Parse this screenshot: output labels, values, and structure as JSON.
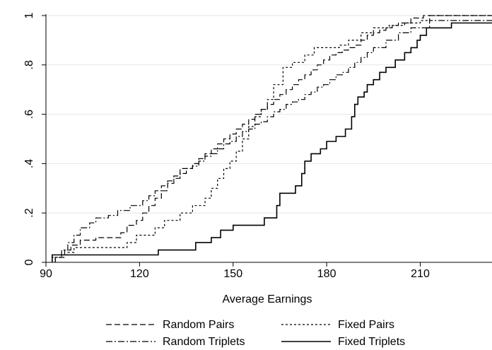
{
  "chart_data": {
    "type": "line",
    "step": true,
    "xlabel": "Average Earnings",
    "ylabel": "",
    "xlim": [
      90,
      233
    ],
    "ylim": [
      0,
      1
    ],
    "x_ticks": [
      90,
      120,
      150,
      180,
      210
    ],
    "y_ticks": [
      0,
      0.2,
      0.4,
      0.6,
      0.8,
      1
    ],
    "x_tick_labels": [
      "90",
      "120",
      "150",
      "180",
      "210"
    ],
    "y_tick_labels": [
      "0",
      ".2",
      ".4",
      ".6",
      ".8",
      "1"
    ],
    "grid": "horizontal",
    "legend_position": "bottom",
    "series": [
      {
        "name": "Random Pairs",
        "dash": "dashed",
        "x": [
          93,
          96,
          98,
          101,
          106,
          114,
          116,
          119,
          121,
          123,
          125,
          127,
          129,
          131,
          133,
          137,
          139,
          141,
          143,
          145,
          147,
          149,
          151,
          153,
          155,
          157,
          159,
          161,
          163,
          165,
          167,
          169,
          171,
          173,
          175,
          177,
          179,
          181,
          183,
          185,
          187,
          189,
          191,
          193,
          195,
          197,
          199,
          201,
          203,
          207,
          211
        ],
        "y": [
          0.02,
          0.05,
          0.07,
          0.09,
          0.1,
          0.12,
          0.15,
          0.17,
          0.2,
          0.23,
          0.26,
          0.29,
          0.32,
          0.35,
          0.38,
          0.4,
          0.42,
          0.44,
          0.46,
          0.48,
          0.5,
          0.52,
          0.54,
          0.56,
          0.58,
          0.6,
          0.62,
          0.64,
          0.66,
          0.68,
          0.7,
          0.72,
          0.74,
          0.76,
          0.78,
          0.8,
          0.82,
          0.84,
          0.85,
          0.86,
          0.87,
          0.88,
          0.9,
          0.92,
          0.93,
          0.94,
          0.95,
          0.96,
          0.97,
          0.99,
          1.0
        ]
      },
      {
        "name": "Fixed Pairs",
        "dash": "dotted",
        "x": [
          92,
          95,
          97,
          99,
          116,
          119,
          125,
          128,
          133,
          137,
          141,
          143,
          145,
          147,
          149,
          151,
          153,
          155,
          157,
          159,
          161,
          163,
          166,
          169,
          173,
          176,
          180,
          184,
          187,
          191,
          195,
          200,
          205,
          210,
          213
        ],
        "y": [
          0.02,
          0.03,
          0.04,
          0.06,
          0.08,
          0.11,
          0.14,
          0.17,
          0.2,
          0.23,
          0.26,
          0.3,
          0.34,
          0.38,
          0.41,
          0.45,
          0.5,
          0.55,
          0.59,
          0.62,
          0.66,
          0.72,
          0.79,
          0.81,
          0.84,
          0.87,
          0.87,
          0.88,
          0.9,
          0.93,
          0.95,
          0.96,
          0.97,
          0.98,
          1.0
        ]
      },
      {
        "name": "Random Triplets",
        "dash": "dashdot",
        "x": [
          93,
          95,
          97,
          99,
          101,
          104,
          106,
          110,
          113,
          117,
          121,
          123,
          125,
          127,
          129,
          131,
          133,
          135,
          137,
          139,
          141,
          143,
          145,
          147,
          149,
          151,
          153,
          155,
          157,
          159,
          161,
          163,
          165,
          167,
          169,
          171,
          173,
          175,
          177,
          179,
          181,
          183,
          185,
          187,
          189,
          191,
          193,
          195,
          199,
          203,
          207,
          213
        ],
        "y": [
          0.02,
          0.05,
          0.08,
          0.11,
          0.14,
          0.16,
          0.18,
          0.19,
          0.21,
          0.23,
          0.25,
          0.27,
          0.29,
          0.31,
          0.33,
          0.34,
          0.36,
          0.38,
          0.39,
          0.41,
          0.43,
          0.44,
          0.46,
          0.48,
          0.49,
          0.51,
          0.53,
          0.54,
          0.56,
          0.57,
          0.59,
          0.61,
          0.62,
          0.64,
          0.65,
          0.66,
          0.68,
          0.69,
          0.71,
          0.72,
          0.74,
          0.76,
          0.77,
          0.79,
          0.81,
          0.83,
          0.85,
          0.87,
          0.9,
          0.93,
          0.95,
          0.98
        ]
      },
      {
        "name": "Fixed Triplets",
        "dash": "solid",
        "x": [
          92,
          102,
          126,
          133,
          138,
          143,
          146,
          150,
          160,
          164,
          165,
          170,
          172,
          173,
          175,
          178,
          180,
          183,
          186,
          188,
          189,
          190,
          192,
          193,
          195,
          197,
          199,
          202,
          205,
          207,
          209,
          210,
          212,
          220
        ],
        "y": [
          0.03,
          0.03,
          0.05,
          0.05,
          0.08,
          0.1,
          0.13,
          0.15,
          0.18,
          0.23,
          0.28,
          0.31,
          0.36,
          0.41,
          0.44,
          0.46,
          0.49,
          0.51,
          0.54,
          0.59,
          0.64,
          0.67,
          0.69,
          0.72,
          0.74,
          0.77,
          0.79,
          0.82,
          0.85,
          0.87,
          0.9,
          0.92,
          0.95,
          0.97
        ]
      }
    ]
  }
}
